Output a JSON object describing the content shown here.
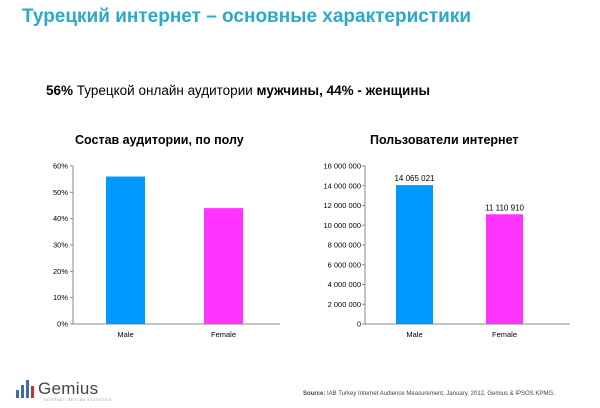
{
  "slide": {
    "title": "Турецкий интернет – основные характеристики",
    "subtitle_pct_m": "56%",
    "subtitle_mid": " Турецкой онлайн аудитории ",
    "subtitle_men": "мужчины, 44% - женщины"
  },
  "chart_data": [
    {
      "type": "bar",
      "title": "Состав аудитории, по полу",
      "categories": [
        "Male",
        "Female"
      ],
      "values": [
        56,
        44
      ],
      "ylim": [
        0,
        60
      ],
      "ytick_labels": [
        "0%",
        "10%",
        "20%",
        "30%",
        "40%",
        "50%",
        "60%"
      ],
      "data_labels": [
        "",
        ""
      ],
      "colors": [
        "#0099ff",
        "#ff33ff"
      ],
      "grid": false
    },
    {
      "type": "bar",
      "title": "Пользователи интернет",
      "categories": [
        "Male",
        "Female"
      ],
      "values": [
        14065021,
        11110910
      ],
      "ylim": [
        0,
        16000000
      ],
      "ytick_labels": [
        "0",
        "2 000 000",
        "4 000 000",
        "6 000 000",
        "8 000 000",
        "10 000 000",
        "12 000 000",
        "14 000 000",
        "16 000 000"
      ],
      "data_labels": [
        "14 065 021",
        "11 110 910"
      ],
      "colors": [
        "#0099ff",
        "#ff33ff"
      ],
      "grid": false
    }
  ],
  "footer": {
    "logo_text": "Gemius",
    "logo_tagline": "INTERNET. BEYOND STATISTICS",
    "source_label": "Source:",
    "source_text": " IAB Turkey Internet Audience Measurement, January, 2012, Gemius & IPSOS KPMG."
  },
  "colors": {
    "title": "#2aa9c9",
    "male": "#0099ff",
    "female": "#ff33ff",
    "axis": "#888888"
  }
}
